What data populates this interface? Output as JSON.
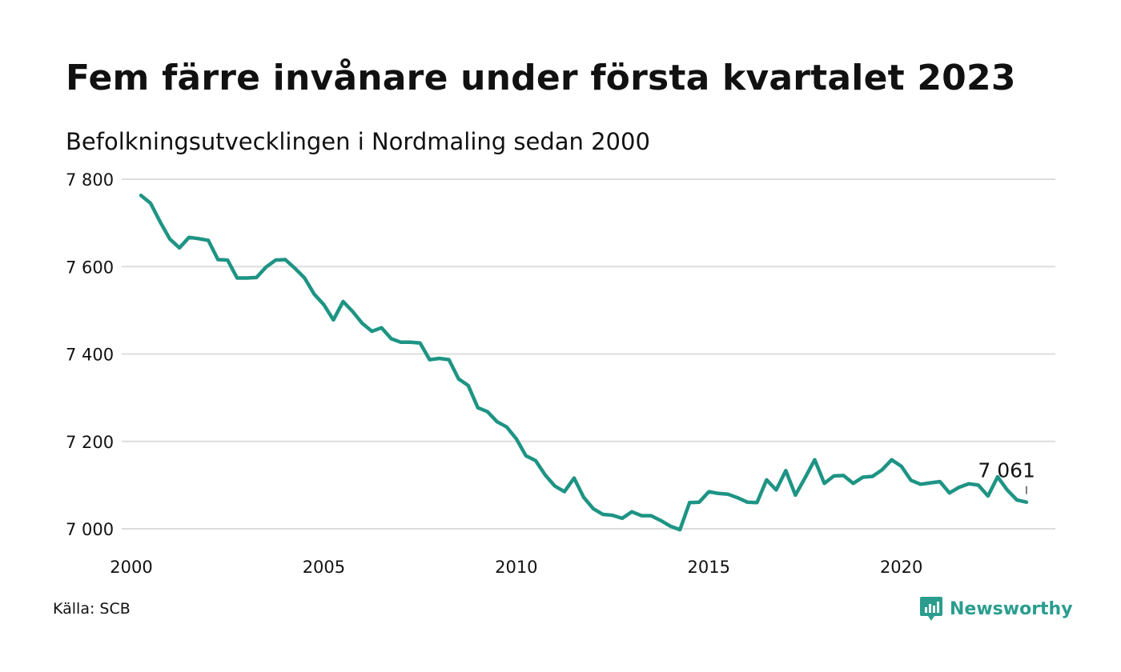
{
  "title": "Fem färre invånare under första kvartalet 2023",
  "subtitle": "Befolkningsutvecklingen i Nordmaling sedan 2000",
  "source": "Källa: SCB",
  "brand": {
    "name": "Newsworthy",
    "icon": "newsworthy-logo-icon",
    "color": "#2a9d8f"
  },
  "colors": {
    "line": "#1e9484",
    "grid": "#dddddd",
    "text": "#111111"
  },
  "chart_data": {
    "type": "line",
    "title": "Fem färre invånare under första kvartalet 2023",
    "subtitle": "Befolkningsutvecklingen i Nordmaling sedan 2000",
    "xlabel": "",
    "ylabel": "",
    "xlim": [
      2000,
      2024
    ],
    "ylim": [
      7000,
      7800
    ],
    "grid": true,
    "x_ticks": [
      2000,
      2005,
      2010,
      2015,
      2020
    ],
    "x_tick_labels": [
      "2000",
      "2005",
      "2010",
      "2015",
      "2020"
    ],
    "y_ticks": [
      7000,
      7200,
      7400,
      7600,
      7800
    ],
    "y_tick_labels": [
      "7 000",
      "7 200",
      "7 400",
      "7 600",
      "7 800"
    ],
    "end_label": "7 061",
    "series": [
      {
        "name": "",
        "x": [
          2000.25,
          2000.5,
          2000.75,
          2001.0,
          2001.25,
          2001.5,
          2001.75,
          2002.0,
          2002.25,
          2002.5,
          2002.75,
          2003.0,
          2003.25,
          2003.5,
          2003.75,
          2004.0,
          2004.25,
          2004.5,
          2004.75,
          2005.0,
          2005.25,
          2005.5,
          2005.75,
          2006.0,
          2006.25,
          2006.5,
          2006.75,
          2007.0,
          2007.25,
          2007.5,
          2007.75,
          2008.0,
          2008.25,
          2008.5,
          2008.75,
          2009.0,
          2009.25,
          2009.5,
          2009.75,
          2010.0,
          2010.25,
          2010.5,
          2010.75,
          2011.0,
          2011.25,
          2011.5,
          2011.75,
          2012.0,
          2012.25,
          2012.5,
          2012.75,
          2013.0,
          2013.25,
          2013.5,
          2013.75,
          2014.0,
          2014.25,
          2014.5,
          2014.75,
          2015.0,
          2015.25,
          2015.5,
          2015.75,
          2016.0,
          2016.25,
          2016.5,
          2016.75,
          2017.0,
          2017.25,
          2017.5,
          2017.75,
          2018.0,
          2018.25,
          2018.5,
          2018.75,
          2019.0,
          2019.25,
          2019.5,
          2019.75,
          2020.0,
          2020.25,
          2020.5,
          2020.75,
          2021.0,
          2021.25,
          2021.5,
          2021.75,
          2022.0,
          2022.25,
          2022.5,
          2022.75,
          2023.0,
          2023.25
        ],
        "y": [
          7763,
          7745,
          7702,
          7663,
          7643,
          7667,
          7664,
          7660,
          7616,
          7615,
          7574,
          7574,
          7575,
          7599,
          7615,
          7616,
          7596,
          7574,
          7537,
          7513,
          7478,
          7520,
          7497,
          7470,
          7452,
          7460,
          7435,
          7427,
          7427,
          7425,
          7387,
          7390,
          7387,
          7343,
          7328,
          7277,
          7268,
          7245,
          7233,
          7206,
          7167,
          7156,
          7123,
          7098,
          7085,
          7116,
          7072,
          7046,
          7033,
          7031,
          7024,
          7039,
          7030,
          7030,
          7019,
          7006,
          6998,
          7060,
          7061,
          7085,
          7081,
          7079,
          7071,
          7061,
          7060,
          7112,
          7089,
          7133,
          7077,
          7117,
          7158,
          7104,
          7121,
          7122,
          7104,
          7118,
          7120,
          7135,
          7158,
          7143,
          7111,
          7102,
          7105,
          7108,
          7082,
          7095,
          7103,
          7100,
          7075,
          7119,
          7089,
          7066,
          7061
        ]
      }
    ]
  }
}
